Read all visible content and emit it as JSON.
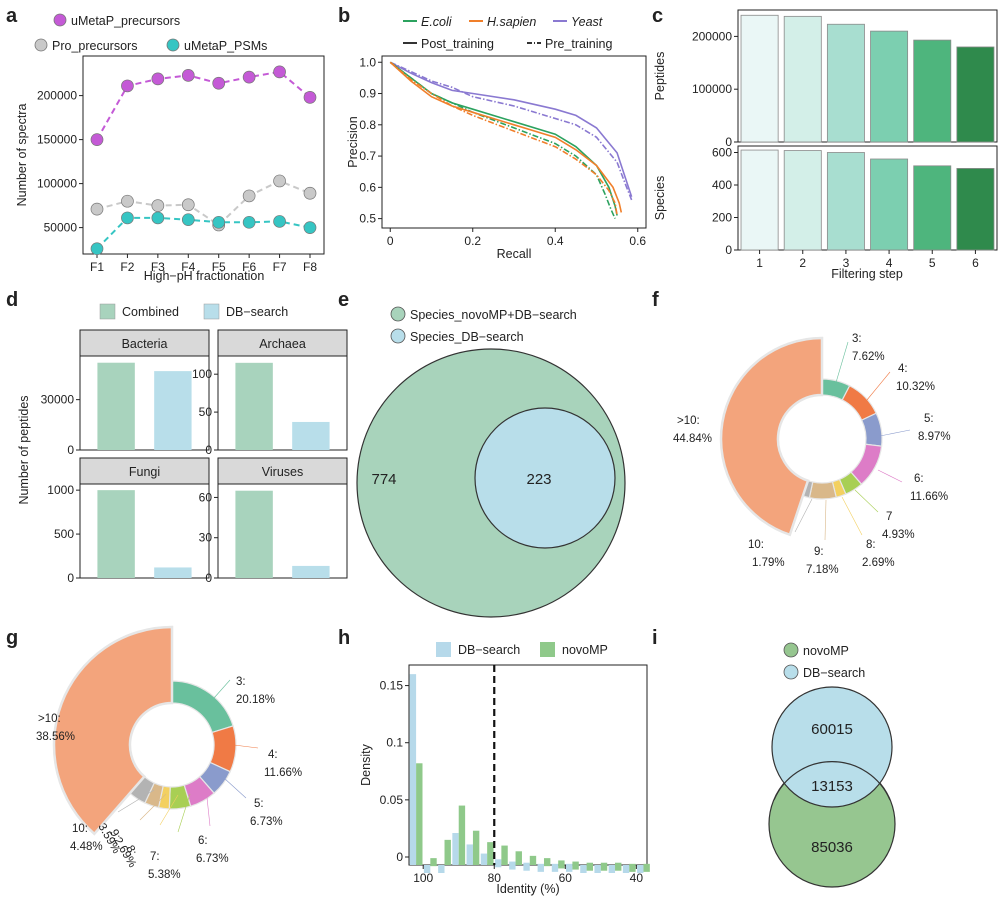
{
  "panels": {
    "a": {
      "letter": "a"
    },
    "b": {
      "letter": "b"
    },
    "c": {
      "letter": "c"
    },
    "d": {
      "letter": "d"
    },
    "e": {
      "letter": "e"
    },
    "f": {
      "letter": "f"
    },
    "g": {
      "letter": "g"
    },
    "h": {
      "letter": "h"
    },
    "i": {
      "letter": "i"
    }
  },
  "colors": {
    "purple": "#c45ad6",
    "grey": "#c9c9c9",
    "teal": "#36c5c3",
    "ecoli": "#2ca25f",
    "hsapien": "#f07f2a",
    "yeast": "#8a79d1",
    "green_soft": "#a8d3bd",
    "blue_soft": "#b8deea",
    "venn_green": "#a8d3bb",
    "venn_blue": "#b8deea",
    "hist_blue": "#b6d9ea",
    "hist_green": "#8fc98a",
    "venn_i_blue": "#b8deea",
    "venn_i_green": "#96c690",
    "filter_steps": [
      "#eaf7f6",
      "#d3efe8",
      "#a8ded0",
      "#7ccfb0",
      "#4eb57d",
      "#2f8a4c"
    ]
  },
  "chart_data": [
    {
      "panel": "a",
      "type": "line",
      "xlabel": "High−pH fractionation",
      "ylabel": "Number of spectra",
      "categories": [
        "F1",
        "F2",
        "F3",
        "F4",
        "F5",
        "F6",
        "F7",
        "F8"
      ],
      "yticks": [
        50000,
        100000,
        150000,
        200000
      ],
      "ylim": [
        20000,
        245000
      ],
      "series": [
        {
          "name": "uMetaP_precursors",
          "color": "#c45ad6",
          "values": [
            150000,
            211000,
            219000,
            223000,
            214000,
            221000,
            227000,
            198000
          ]
        },
        {
          "name": "Pro_precursors",
          "color": "#c9c9c9",
          "values": [
            71000,
            80000,
            75000,
            76000,
            53000,
            86000,
            103000,
            89000
          ]
        },
        {
          "name": "uMetaP_PSMs",
          "color": "#36c5c3",
          "values": [
            26000,
            61000,
            61000,
            59000,
            56000,
            56000,
            57000,
            50000
          ]
        }
      ]
    },
    {
      "panel": "b",
      "type": "line",
      "xlabel": "Recall",
      "ylabel": "Precision",
      "xticks": [
        0,
        0.2,
        0.4,
        0.6
      ],
      "yticks": [
        0.5,
        0.6,
        0.7,
        0.8,
        0.9,
        1.0
      ],
      "xlim": [
        -0.02,
        0.62
      ],
      "ylim": [
        0.47,
        1.02
      ],
      "legend_species": [
        "E.coli",
        "H.sapien",
        "Yeast"
      ],
      "legend_types": [
        "Post_training",
        "Pre_training"
      ],
      "series": [
        {
          "species": "Yeast",
          "type": "Post_training",
          "x": [
            0,
            0.05,
            0.1,
            0.15,
            0.2,
            0.3,
            0.4,
            0.45,
            0.5,
            0.55,
            0.57,
            0.585
          ],
          "y": [
            1.0,
            0.965,
            0.935,
            0.91,
            0.9,
            0.88,
            0.85,
            0.83,
            0.79,
            0.71,
            0.63,
            0.57
          ]
        },
        {
          "species": "Yeast",
          "type": "Pre_training",
          "x": [
            0,
            0.05,
            0.1,
            0.15,
            0.2,
            0.3,
            0.4,
            0.45,
            0.5,
            0.55,
            0.57,
            0.585
          ],
          "y": [
            1.0,
            0.97,
            0.94,
            0.92,
            0.89,
            0.86,
            0.82,
            0.8,
            0.76,
            0.68,
            0.61,
            0.56
          ]
        },
        {
          "species": "E.coli",
          "type": "Post_training",
          "x": [
            0,
            0.05,
            0.1,
            0.15,
            0.2,
            0.3,
            0.4,
            0.45,
            0.5,
            0.53,
            0.545,
            0.55
          ],
          "y": [
            1.0,
            0.95,
            0.9,
            0.87,
            0.85,
            0.81,
            0.77,
            0.73,
            0.67,
            0.6,
            0.54,
            0.51
          ]
        },
        {
          "species": "E.coli",
          "type": "Pre_training",
          "x": [
            0,
            0.05,
            0.1,
            0.15,
            0.2,
            0.3,
            0.4,
            0.45,
            0.5,
            0.52,
            0.535,
            0.545
          ],
          "y": [
            1.0,
            0.95,
            0.9,
            0.87,
            0.84,
            0.79,
            0.74,
            0.7,
            0.64,
            0.58,
            0.53,
            0.5
          ]
        },
        {
          "species": "H.sapien",
          "type": "Post_training",
          "x": [
            0,
            0.05,
            0.1,
            0.15,
            0.2,
            0.3,
            0.4,
            0.45,
            0.5,
            0.54,
            0.555,
            0.56
          ],
          "y": [
            1.0,
            0.94,
            0.89,
            0.86,
            0.84,
            0.8,
            0.76,
            0.72,
            0.67,
            0.6,
            0.55,
            0.52
          ]
        },
        {
          "species": "H.sapien",
          "type": "Pre_training",
          "x": [
            0,
            0.05,
            0.1,
            0.15,
            0.2,
            0.3,
            0.4,
            0.45,
            0.5,
            0.53,
            0.545,
            0.55
          ],
          "y": [
            1.0,
            0.945,
            0.9,
            0.86,
            0.83,
            0.78,
            0.73,
            0.69,
            0.64,
            0.59,
            0.55,
            0.51
          ]
        }
      ]
    },
    {
      "panel": "c",
      "type": "bar",
      "xlabel": "Filtering step",
      "categories": [
        "1",
        "2",
        "3",
        "4",
        "5",
        "6"
      ],
      "facets": [
        {
          "ylabel": "Peptides",
          "values": [
            240000,
            238000,
            223000,
            210000,
            193000,
            180000
          ],
          "yticks": [
            0,
            100000,
            200000
          ],
          "ylim": [
            0,
            250000
          ]
        },
        {
          "ylabel": "Species",
          "values": [
            615,
            612,
            600,
            560,
            518,
            502
          ],
          "yticks": [
            0,
            200,
            400,
            600
          ],
          "ylim": [
            0,
            640
          ]
        }
      ]
    },
    {
      "panel": "d",
      "type": "bar",
      "ylabel": "Number of peptides",
      "legend": [
        "Combined",
        "DB−search"
      ],
      "facets": [
        {
          "label": "Bacteria",
          "values": [
            52000,
            47000
          ],
          "yticks": [
            0,
            30000
          ],
          "ylim": [
            0,
            56000
          ]
        },
        {
          "label": "Archaea",
          "values": [
            115,
            37
          ],
          "yticks": [
            0,
            50,
            100
          ],
          "ylim": [
            0,
            124
          ]
        },
        {
          "label": "Fungi",
          "values": [
            1000,
            120
          ],
          "yticks": [
            0,
            500,
            1000
          ],
          "ylim": [
            0,
            1070
          ]
        },
        {
          "label": "Viruses",
          "values": [
            65,
            9
          ],
          "yticks": [
            0,
            30,
            60
          ],
          "ylim": [
            0,
            70
          ]
        }
      ]
    },
    {
      "panel": "e",
      "type": "venn",
      "legend": [
        "Species_novoMP+DB−search",
        "Species_DB−search"
      ],
      "outer_only": "774",
      "inner": "223"
    },
    {
      "panel": "f",
      "type": "pie",
      "slices": [
        {
          "key": "3",
          "label": "3:",
          "value": 7.62,
          "pct": "7.62%",
          "color": "#69c09d"
        },
        {
          "key": "4",
          "label": "4:",
          "value": 10.32,
          "pct": "10.32%",
          "color": "#f07a45"
        },
        {
          "key": "5",
          "label": "5:",
          "value": 8.97,
          "pct": "8.97%",
          "color": "#8a9bcc"
        },
        {
          "key": "6",
          "label": "6:",
          "value": 11.66,
          "pct": "11.66%",
          "color": "#dd7cc7"
        },
        {
          "key": "7",
          "label": "7",
          "value": 4.93,
          "pct": "4.93%",
          "color": "#a8cf54"
        },
        {
          "key": "8",
          "label": "8:",
          "value": 2.69,
          "pct": "2.69%",
          "color": "#f3d060"
        },
        {
          "key": "9",
          "label": "9:",
          "value": 7.18,
          "pct": "7.18%",
          "color": "#d9b88a"
        },
        {
          "key": "10",
          "label": "10:",
          "value": 1.79,
          "pct": "1.79%",
          "color": "#b3b3b3"
        },
        {
          "key": ">10",
          "label": ">10:",
          "value": 44.84,
          "pct": "44.84%",
          "color": "#f3a47c"
        }
      ]
    },
    {
      "panel": "g",
      "type": "pie",
      "slices": [
        {
          "key": "3",
          "label": "3:",
          "value": 20.18,
          "pct": "20.18%",
          "color": "#69c09d"
        },
        {
          "key": "4",
          "label": "4:",
          "value": 11.66,
          "pct": "11.66%",
          "color": "#f07a45"
        },
        {
          "key": "5",
          "label": "5:",
          "value": 6.73,
          "pct": "6.73%",
          "color": "#8a9bcc"
        },
        {
          "key": "6",
          "label": "6:",
          "value": 6.73,
          "pct": "6.73%",
          "color": "#dd7cc7"
        },
        {
          "key": "7",
          "label": "7:",
          "value": 5.38,
          "pct": "5.38%",
          "color": "#a8cf54"
        },
        {
          "key": "8",
          "label": "8:",
          "value": 2.69,
          "pct": "2.69%",
          "color": "#f3d060"
        },
        {
          "key": "9",
          "label": "9:",
          "value": 3.59,
          "pct": "3.59%",
          "color": "#d9b88a"
        },
        {
          "key": "10",
          "label": "10:",
          "value": 4.48,
          "pct": "4.48%",
          "color": "#b3b3b3"
        },
        {
          "key": ">10",
          "label": ">10:",
          "value": 38.56,
          "pct": "38.56%",
          "color": "#f3a47c"
        }
      ]
    },
    {
      "panel": "h",
      "type": "bar",
      "xlabel": "Identity (%)",
      "ylabel": "Density",
      "legend": [
        "DB−search",
        "novoMP"
      ],
      "xticks": [
        100,
        80,
        60,
        40
      ],
      "yticks": [
        0,
        0.05,
        0.1,
        0.15
      ],
      "xlim": [
        104,
        37
      ],
      "ylim": [
        0,
        0.175
      ],
      "dashed_line_x": 80,
      "bins": [
        102,
        98,
        94,
        90,
        86,
        82,
        78,
        74,
        70,
        66,
        62,
        58,
        54,
        50,
        46,
        42,
        38
      ],
      "series": [
        {
          "name": "DB−search",
          "values": [
            0.167,
            0.0,
            0.0,
            0.028,
            0.018,
            0.01,
            0.005,
            0.003,
            0.002,
            0.001,
            0.001,
            0.001,
            0.0,
            0.0,
            0.0,
            0.0,
            0.0
          ]
        },
        {
          "name": "novoMP",
          "values": [
            0.089,
            0.006,
            0.022,
            0.052,
            0.03,
            0.02,
            0.017,
            0.012,
            0.008,
            0.006,
            0.004,
            0.003,
            0.002,
            0.002,
            0.002,
            0.001,
            0.001
          ]
        }
      ]
    },
    {
      "panel": "i",
      "type": "venn",
      "legend": [
        "novoMP",
        "DB−search"
      ],
      "top_only": "60015",
      "overlap": "13153",
      "bottom_only": "85036"
    }
  ]
}
